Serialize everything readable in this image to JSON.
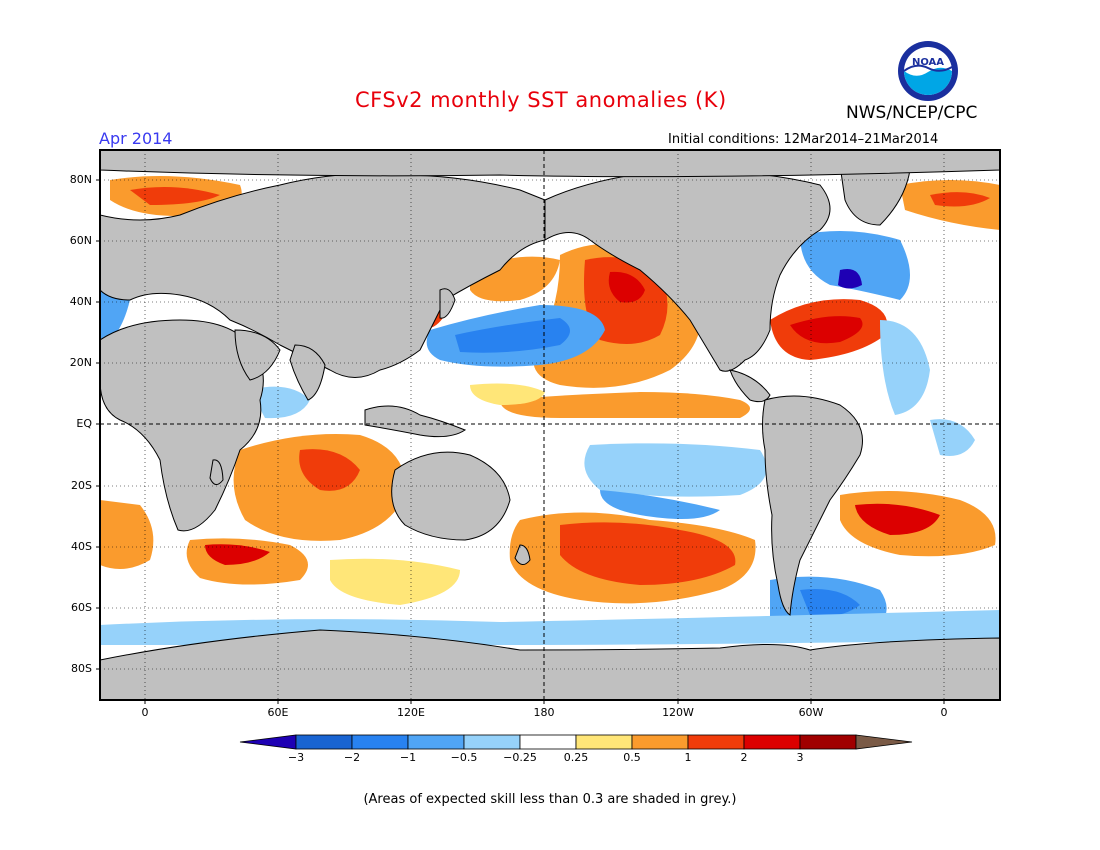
{
  "header": {
    "title": "CFSv2 monthly SST anomalies (K)",
    "month": "Apr 2014",
    "initial_conditions": "Initial conditions: 12Mar2014–21Mar2014",
    "organization": "NWS/NCEP/CPC",
    "logo_text": "NOAA"
  },
  "map": {
    "lat_labels": [
      "80N",
      "60N",
      "40N",
      "20N",
      "EQ",
      "20S",
      "40S",
      "60S",
      "80S"
    ],
    "lon_labels": [
      "0",
      "60E",
      "120E",
      "180",
      "120W",
      "60W",
      "0"
    ]
  },
  "colorbar": {
    "labels": [
      "−3",
      "−2",
      "−1",
      "−0.5",
      "−0.25",
      "0.25",
      "0.5",
      "1",
      "2",
      "3"
    ],
    "colors": [
      "#1e00b4",
      "#1964d2",
      "#2882f0",
      "#50a5f5",
      "#96d2fa",
      "#ffffff",
      "#ffe678",
      "#fa9b2d",
      "#f03c0a",
      "#dc0000",
      "#a00000",
      "#7a5a46"
    ]
  },
  "footer": {
    "note": "(Areas of expected skill less than 0.3 are shaded in grey.)"
  },
  "colors": {
    "land": "#c0c0c0",
    "ocean_neutral": "#ffffff",
    "title": "#e8000b",
    "month": "#3a3af0"
  }
}
